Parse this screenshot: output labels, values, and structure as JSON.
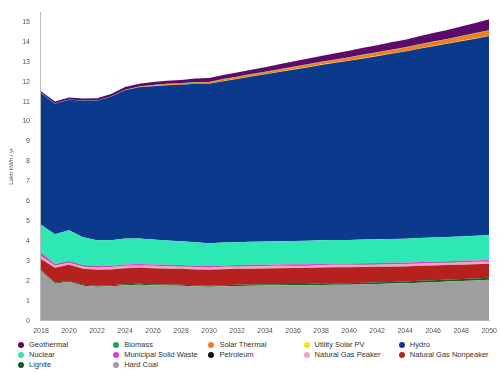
{
  "chart_data": {
    "type": "area",
    "y_label": "Lakh kWh / yr",
    "stacked": true,
    "grid": false,
    "legend": "bottom",
    "categories": [
      "2018",
      null,
      "2020",
      null,
      "2022",
      null,
      "2024",
      null,
      "2026",
      null,
      "2028",
      null,
      "2030",
      null,
      "2032",
      null,
      "2034",
      null,
      "2036",
      null,
      "2038",
      null,
      "2040",
      null,
      "2042",
      null,
      "2044",
      null,
      "2046",
      null,
      "2048",
      null,
      "2050"
    ],
    "ylim": [
      0,
      15.5
    ],
    "yticks": [
      0,
      1,
      2,
      3,
      4,
      5,
      6,
      7,
      8,
      9,
      10,
      11,
      12,
      13,
      14,
      15
    ],
    "series": [
      {
        "name": "Geothermal",
        "color": "#5c0a6b",
        "values": [
          0.08,
          0.09,
          0.1,
          0.1,
          0.11,
          0.12,
          0.13,
          0.14,
          0.15,
          0.16,
          0.17,
          0.18,
          0.19,
          0.2,
          0.21,
          0.22,
          0.23,
          0.25,
          0.26,
          0.28,
          0.29,
          0.31,
          0.32,
          0.34,
          0.35,
          0.37,
          0.38,
          0.4,
          0.42,
          0.45,
          0.48,
          0.51,
          0.55
        ]
      },
      {
        "name": "Biomass",
        "color": "#1fa35b",
        "values": [
          0.02,
          0.02,
          0.02,
          0.02,
          0.02,
          0.02,
          0.02,
          0.02,
          0.02,
          0.02,
          0.02,
          0.02,
          0.02,
          0.02,
          0.02,
          0.02,
          0.02,
          0.02,
          0.02,
          0.02,
          0.02,
          0.02,
          0.02,
          0.02,
          0.02,
          0.02,
          0.02,
          0.02,
          0.02,
          0.02,
          0.02,
          0.02,
          0.02
        ]
      },
      {
        "name": "Solar Thermal",
        "color": "#f57c1f",
        "values": [
          0,
          0,
          0,
          0,
          0,
          0,
          0.01,
          0.02,
          0.03,
          0.04,
          0.05,
          0.06,
          0.07,
          0.08,
          0.08,
          0.09,
          0.1,
          0.1,
          0.11,
          0.12,
          0.12,
          0.13,
          0.14,
          0.15,
          0.16,
          0.17,
          0.18,
          0.19,
          0.2,
          0.21,
          0.22,
          0.24,
          0.25
        ]
      },
      {
        "name": "Utility Solar PV",
        "color": "#f5e11a",
        "values": [
          0,
          0,
          0,
          0,
          0,
          0,
          0,
          0,
          0.01,
          0.01,
          0.01,
          0.01,
          0.01,
          0.01,
          0.01,
          0.01,
          0.01,
          0.01,
          0.02,
          0.02,
          0.02,
          0.02,
          0.02,
          0.02,
          0.02,
          0.02,
          0.02,
          0.02,
          0.02,
          0.02,
          0.02,
          0.02,
          0.02
        ]
      },
      {
        "name": "Hydro",
        "color": "#0b3a8c",
        "values": [
          6.6,
          6.55,
          6.55,
          6.85,
          7.0,
          7.2,
          7.45,
          7.6,
          7.7,
          7.8,
          7.85,
          7.95,
          8.0,
          8.1,
          8.2,
          8.3,
          8.4,
          8.5,
          8.6,
          8.7,
          8.8,
          8.9,
          9.0,
          9.1,
          9.2,
          9.3,
          9.4,
          9.5,
          9.6,
          9.7,
          9.8,
          9.9,
          10.0
        ]
      },
      {
        "name": "Nuclear",
        "color": "#2de8b3",
        "values": [
          1.4,
          1.5,
          1.55,
          1.4,
          1.3,
          1.28,
          1.3,
          1.28,
          1.25,
          1.22,
          1.2,
          1.18,
          1.15,
          1.15,
          1.15,
          1.16,
          1.16,
          1.17,
          1.17,
          1.18,
          1.18,
          1.18,
          1.18,
          1.19,
          1.19,
          1.2,
          1.2,
          1.21,
          1.22,
          1.22,
          1.23,
          1.24,
          1.25
        ]
      },
      {
        "name": "Municipal Solid Waste",
        "color": "#e63ad6",
        "values": [
          0.15,
          0.05,
          0.05,
          0.05,
          0.05,
          0.05,
          0.05,
          0.05,
          0.05,
          0.05,
          0.05,
          0.05,
          0.05,
          0.05,
          0.05,
          0.05,
          0.05,
          0.05,
          0.05,
          0.05,
          0.05,
          0.05,
          0.05,
          0.05,
          0.05,
          0.05,
          0.05,
          0.05,
          0.05,
          0.05,
          0.05,
          0.05,
          0.05
        ]
      },
      {
        "name": "Petroleum",
        "color": "#111111",
        "values": [
          0.02,
          0.02,
          0.02,
          0.02,
          0.02,
          0.02,
          0.02,
          0.02,
          0.02,
          0.02,
          0.02,
          0.02,
          0.02,
          0.02,
          0.02,
          0.02,
          0.02,
          0.02,
          0.02,
          0.02,
          0.02,
          0.02,
          0.02,
          0.02,
          0.02,
          0.02,
          0.02,
          0.02,
          0.02,
          0.02,
          0.02,
          0.02,
          0.02
        ]
      },
      {
        "name": "Natural Gas Peaker",
        "color": "#f2a3c7",
        "values": [
          0.15,
          0.12,
          0.12,
          0.12,
          0.12,
          0.12,
          0.12,
          0.12,
          0.12,
          0.12,
          0.12,
          0.12,
          0.12,
          0.12,
          0.12,
          0.12,
          0.12,
          0.12,
          0.12,
          0.12,
          0.12,
          0.12,
          0.12,
          0.12,
          0.12,
          0.12,
          0.12,
          0.12,
          0.12,
          0.12,
          0.12,
          0.12,
          0.12
        ]
      },
      {
        "name": "Natural Gas Nonpeaker",
        "color": "#b5211f",
        "values": [
          0.55,
          0.75,
          0.8,
          0.8,
          0.8,
          0.8,
          0.8,
          0.8,
          0.8,
          0.8,
          0.8,
          0.8,
          0.8,
          0.8,
          0.8,
          0.8,
          0.8,
          0.8,
          0.8,
          0.8,
          0.8,
          0.8,
          0.8,
          0.79,
          0.78,
          0.77,
          0.76,
          0.75,
          0.74,
          0.73,
          0.72,
          0.71,
          0.7
        ]
      },
      {
        "name": "Lignite",
        "color": "#0e5e2a",
        "values": [
          0.05,
          0.05,
          0.05,
          0.05,
          0.05,
          0.05,
          0.05,
          0.05,
          0.05,
          0.05,
          0.05,
          0.05,
          0.05,
          0.06,
          0.06,
          0.06,
          0.06,
          0.06,
          0.06,
          0.06,
          0.08,
          0.08,
          0.08,
          0.08,
          0.08,
          0.08,
          0.08,
          0.1,
          0.1,
          0.1,
          0.1,
          0.1,
          0.1
        ]
      },
      {
        "name": "Hard Coal",
        "color": "#9e9e9e",
        "values": [
          2.5,
          1.85,
          1.95,
          1.75,
          1.7,
          1.72,
          1.78,
          1.8,
          1.78,
          1.76,
          1.75,
          1.72,
          1.7,
          1.72,
          1.74,
          1.75,
          1.76,
          1.77,
          1.78,
          1.78,
          1.79,
          1.8,
          1.8,
          1.82,
          1.84,
          1.86,
          1.88,
          1.9,
          1.93,
          1.96,
          1.99,
          2.02,
          2.05
        ]
      }
    ]
  }
}
